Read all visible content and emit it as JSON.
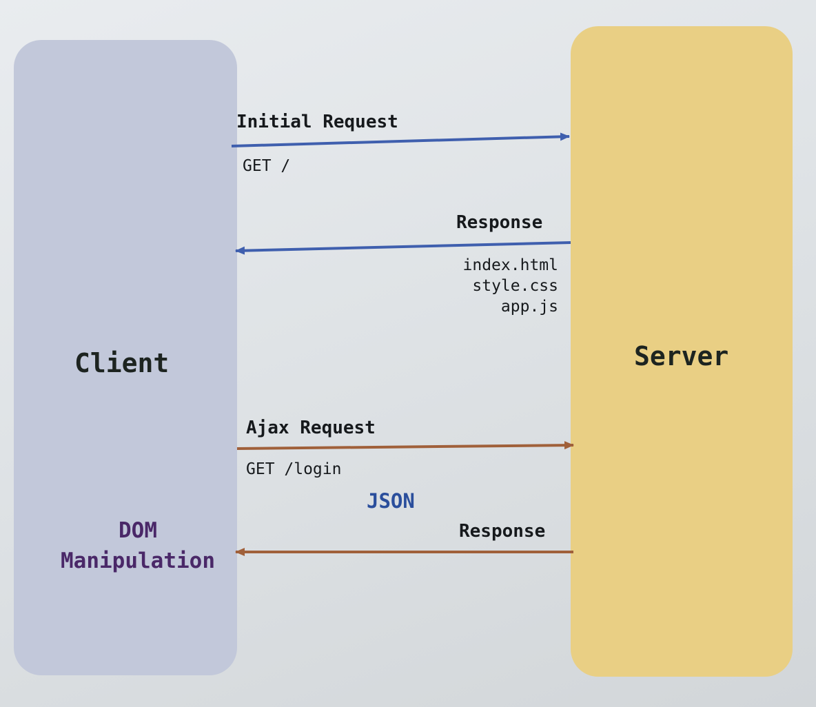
{
  "client": {
    "label": "Client",
    "color": "#c2c8da"
  },
  "server": {
    "label": "Server",
    "color": "#e9cf84"
  },
  "dom_manipulation": {
    "line1": "DOM",
    "line2": "Manipulation",
    "color": "#4a2868"
  },
  "messages": {
    "initial_request": {
      "label": "Initial Request",
      "detail": "GET /",
      "color": "#3f5fae"
    },
    "response_1": {
      "label": "Response",
      "files": [
        "index.html",
        "style.css",
        "app.js"
      ],
      "color": "#3f5fae"
    },
    "ajax_request": {
      "label": "Ajax Request",
      "detail": "GET /login",
      "color": "#a0603a"
    },
    "json": {
      "label": "JSON",
      "color": "#2a4e9c"
    },
    "response_2": {
      "label": "Response",
      "color": "#a0603a"
    }
  }
}
